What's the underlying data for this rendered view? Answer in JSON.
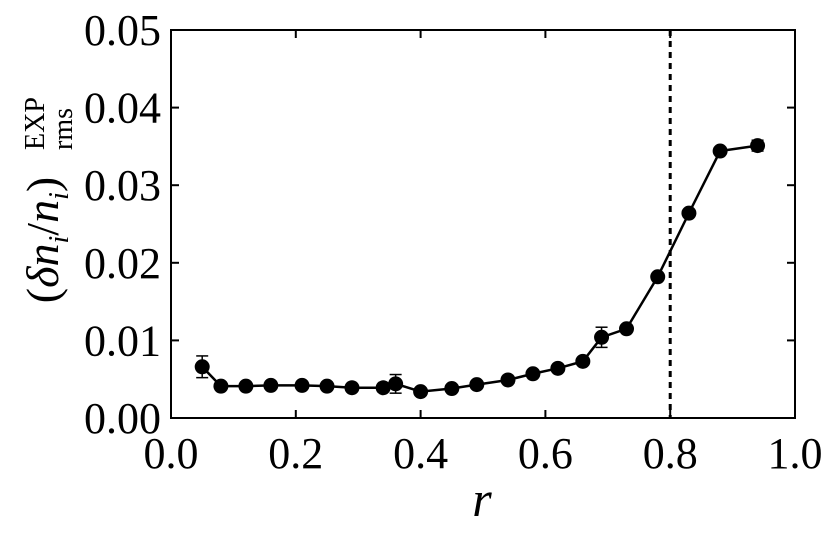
{
  "chart_data": {
    "type": "line",
    "xlabel": "r",
    "ylabel": {
      "open": "(",
      "delta": "δ",
      "n1": "n",
      "sub1": "i",
      "slash": "/",
      "n2": "n",
      "sub2": "i",
      "close": ")",
      "superscript": "EXP",
      "subscript": "rms"
    },
    "xlim": [
      0.0,
      1.0
    ],
    "ylim": [
      0.0,
      0.05
    ],
    "xticks": [
      "0.0",
      "0.2",
      "0.4",
      "0.6",
      "0.8",
      "1.0"
    ],
    "yticks": [
      "0.00",
      "0.01",
      "0.02",
      "0.03",
      "0.04",
      "0.05"
    ],
    "xtick_values": [
      0.0,
      0.2,
      0.4,
      0.6,
      0.8,
      1.0
    ],
    "ytick_values": [
      0.0,
      0.01,
      0.02,
      0.03,
      0.04,
      0.05
    ],
    "vline": 0.8,
    "vline_style": "dashed",
    "series": [
      {
        "color": "#000000",
        "marker": "circle",
        "points": [
          {
            "x": 0.05,
            "y": 0.0066,
            "err": 0.0014
          },
          {
            "x": 0.08,
            "y": 0.0041,
            "err": 0.0003
          },
          {
            "x": 0.12,
            "y": 0.0041,
            "err": 0.0003
          },
          {
            "x": 0.16,
            "y": 0.0042,
            "err": 0.0003
          },
          {
            "x": 0.21,
            "y": 0.0042,
            "err": 0.0003
          },
          {
            "x": 0.25,
            "y": 0.0041,
            "err": 0.0003
          },
          {
            "x": 0.29,
            "y": 0.0039,
            "err": 0.0003
          },
          {
            "x": 0.34,
            "y": 0.0039,
            "err": 0.0003
          },
          {
            "x": 0.36,
            "y": 0.0044,
            "err": 0.0012
          },
          {
            "x": 0.4,
            "y": 0.0034,
            "err": 0.0003
          },
          {
            "x": 0.45,
            "y": 0.0038,
            "err": 0.0003
          },
          {
            "x": 0.49,
            "y": 0.0043,
            "err": 0.0003
          },
          {
            "x": 0.54,
            "y": 0.0049,
            "err": 0.0003
          },
          {
            "x": 0.58,
            "y": 0.0057,
            "err": 0.0003
          },
          {
            "x": 0.62,
            "y": 0.0064,
            "err": 0.0003
          },
          {
            "x": 0.66,
            "y": 0.0073,
            "err": 0.0004
          },
          {
            "x": 0.69,
            "y": 0.0104,
            "err": 0.0013
          },
          {
            "x": 0.73,
            "y": 0.0115,
            "err": 0.0004
          },
          {
            "x": 0.78,
            "y": 0.0182,
            "err": 0.0004
          },
          {
            "x": 0.83,
            "y": 0.0264,
            "err": 0.0004
          },
          {
            "x": 0.88,
            "y": 0.0344,
            "err": 0.0004
          },
          {
            "x": 0.94,
            "y": 0.0351,
            "err": 0.0007
          }
        ]
      }
    ]
  }
}
